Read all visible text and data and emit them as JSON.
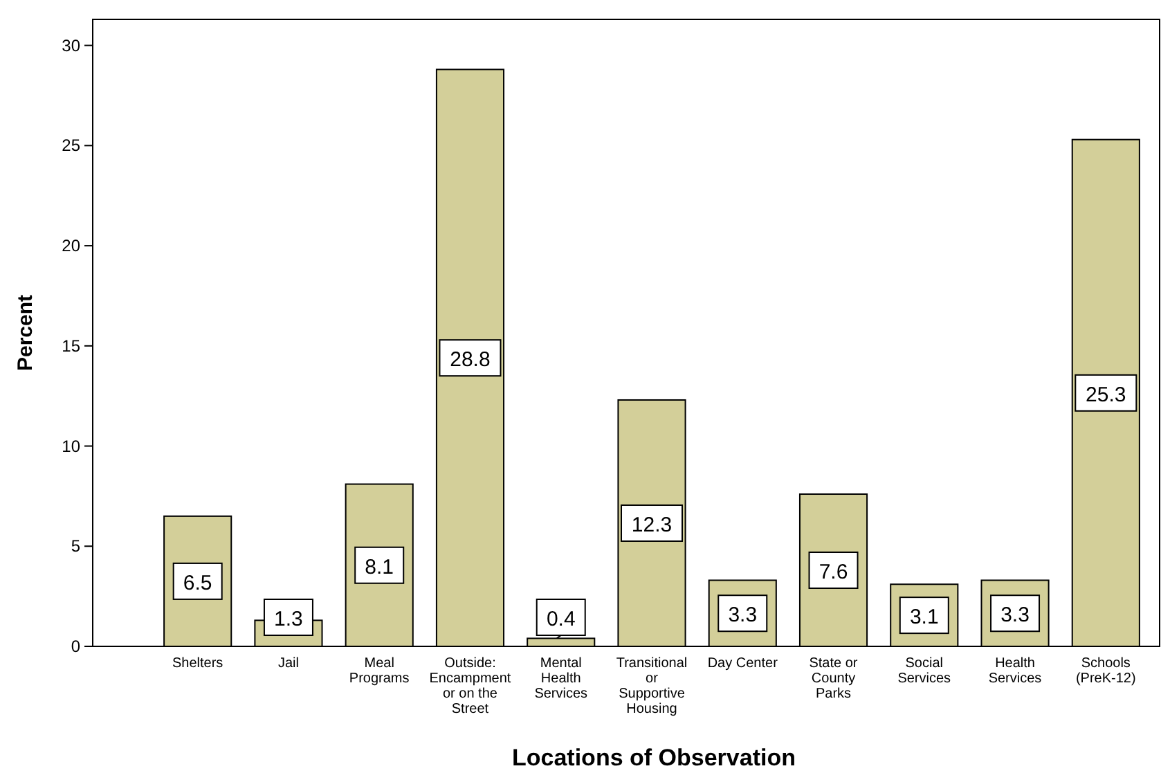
{
  "chart_data": {
    "type": "bar",
    "xlabel": "Locations of Observation",
    "ylabel": "Percent",
    "categories": [
      "Shelters",
      "Jail",
      "Meal Programs",
      "Outside: Encampment or on the Street",
      "Mental Health Services",
      "Transitional or Supportive Housing",
      "Day Center",
      "State or County Parks",
      "Social Services",
      "Health Services",
      "Schools (PreK-12)"
    ],
    "values": [
      6.5,
      1.3,
      8.1,
      28.8,
      0.4,
      12.3,
      3.3,
      7.6,
      3.1,
      3.3,
      25.3
    ],
    "color": "#d3cf99",
    "ylim": [
      0,
      31.3
    ],
    "yticks": [
      0,
      5,
      10,
      15,
      20,
      25,
      30
    ],
    "grid": false,
    "data_labels": true
  }
}
